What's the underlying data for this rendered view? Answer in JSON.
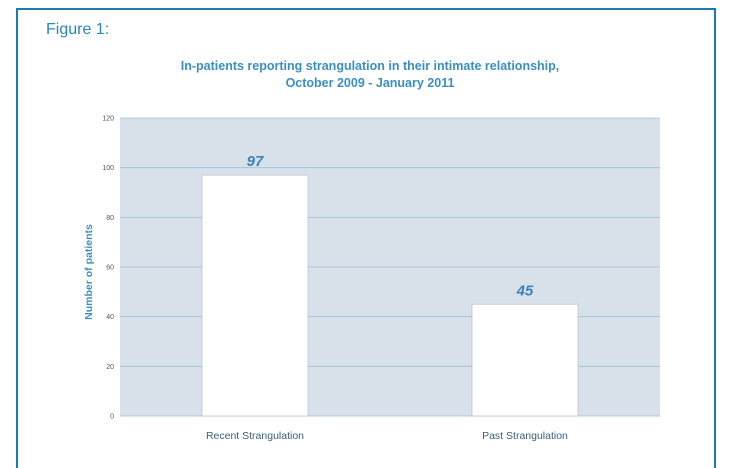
{
  "figure_label": "Figure 1:",
  "chart_data": {
    "type": "bar",
    "title": "In-patients reporting strangulation in their intimate relationship,",
    "subtitle": "October 2009 - January 2011",
    "xlabel": "",
    "ylabel": "Number of patients",
    "categories": [
      "Recent Strangulation",
      "Past Strangulation"
    ],
    "values": [
      97,
      45
    ],
    "data_labels": [
      "97",
      "45"
    ],
    "ylim": [
      0,
      120
    ],
    "yticks": [
      0,
      20,
      40,
      60,
      80,
      100,
      120
    ],
    "ytick_labels": [
      "0",
      "20",
      "40",
      "60",
      "80",
      "100",
      "120"
    ],
    "grid": true,
    "legend": "none"
  },
  "colors": {
    "plot_background": "#d8e1ea",
    "bar_fill": "#ffffff",
    "bar_stroke": "#b9c6d2",
    "gridline": "#9ec0d6",
    "frame": "#1a7ca8",
    "title": "#3b8fc0",
    "data_label": "#3a85b6"
  }
}
